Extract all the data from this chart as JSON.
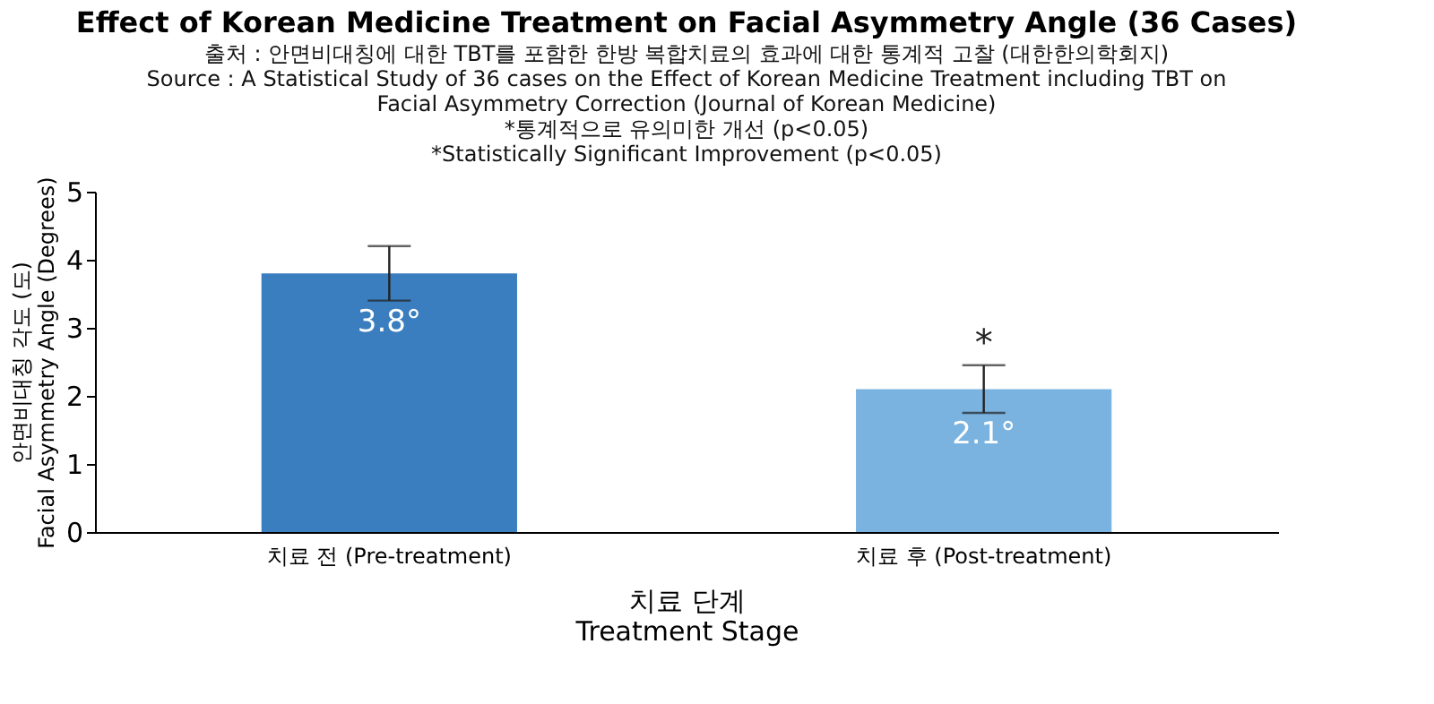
{
  "chart_data": {
    "type": "bar",
    "title": "Effect of Korean Medicine Treatment on Facial Asymmetry Angle (36 Cases)",
    "subtitle": [
      "출처 : 안면비대칭에 대한 TBT를 포함한 한방 복합치료의 효과에 대한 통계적 고찰 (대한한의학회지)",
      "Source : A Statistical Study of 36 cases on the Effect of Korean Medicine Treatment including TBT on",
      "Facial Asymmetry Correction (Journal of Korean Medicine)",
      "*통계적으로 유의미한 개선 (p<0.05)",
      "*Statistically Significant Improvement (p<0.05)"
    ],
    "xlabel": [
      "치료 단계",
      "Treatment Stage"
    ],
    "ylabel": [
      "안면비대칭 각도 (도)",
      "Facial Asymmetry Angle (Degrees)"
    ],
    "categories": [
      "치료 전 (Pre-treatment)",
      "치료 후 (Post-treatment)"
    ],
    "values": [
      3.8,
      2.1
    ],
    "colors": [
      "#3a7ebf",
      "#7ab3e0"
    ],
    "errors": [
      0.4,
      0.35
    ],
    "value_labels": [
      "3.8°",
      "2.1°"
    ],
    "annotations": [
      {
        "text": "*",
        "x": "치료 후 (Post-treatment)",
        "y": 2.45
      }
    ],
    "ylim": [
      0,
      5
    ],
    "yticks": [
      0,
      1,
      2,
      3,
      4,
      5
    ],
    "grid": false
  }
}
